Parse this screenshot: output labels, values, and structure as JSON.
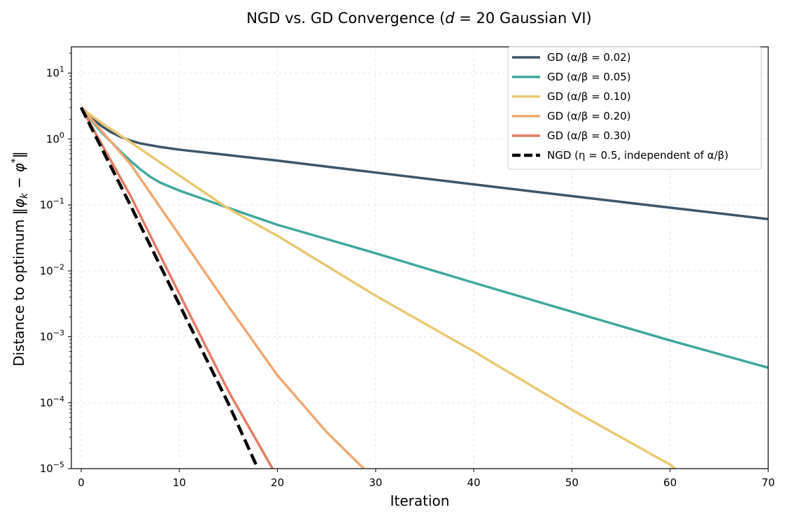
{
  "chart_data": {
    "type": "line",
    "title": "NGD vs. GD Convergence (d = 20 Gaussian VI)",
    "xlabel": "Iteration",
    "ylabel": "Distance to optimum  ‖φ_k − φ*‖",
    "xlim": [
      -1,
      70
    ],
    "ylim": [
      1e-05,
      25
    ],
    "yscale": "log",
    "x_ticks": [
      0,
      10,
      20,
      30,
      40,
      50,
      60,
      70
    ],
    "y_ticks": [
      {
        "value": 1e-05,
        "base": "10",
        "exp": "−5"
      },
      {
        "value": 0.0001,
        "base": "10",
        "exp": "−4"
      },
      {
        "value": 0.001,
        "base": "10",
        "exp": "−3"
      },
      {
        "value": 0.01,
        "base": "10",
        "exp": "−2"
      },
      {
        "value": 0.1,
        "base": "10",
        "exp": "−1"
      },
      {
        "value": 1,
        "base": "10",
        "exp": "0"
      },
      {
        "value": 10,
        "base": "10",
        "exp": "1"
      }
    ],
    "grid": true,
    "legend_position": "top-right",
    "series": [
      {
        "name": "GD (α/β = 0.02)",
        "color": "#3f5566",
        "style": "solid",
        "points": [
          [
            0,
            3.0
          ],
          [
            1,
            2.1
          ],
          [
            2,
            1.6
          ],
          [
            3,
            1.28
          ],
          [
            4,
            1.08
          ],
          [
            5,
            0.95
          ],
          [
            6,
            0.86
          ],
          [
            8,
            0.76
          ],
          [
            10,
            0.69
          ],
          [
            15,
            0.57
          ],
          [
            20,
            0.47
          ],
          [
            30,
            0.31
          ],
          [
            40,
            0.205
          ],
          [
            50,
            0.136
          ],
          [
            60,
            0.091
          ],
          [
            70,
            0.061
          ]
        ]
      },
      {
        "name": "GD (α/β = 0.05)",
        "color": "#3fa89b",
        "style": "solid",
        "points": [
          [
            0,
            3.0
          ],
          [
            1,
            1.95
          ],
          [
            2,
            1.3
          ],
          [
            3,
            0.92
          ],
          [
            4,
            0.65
          ],
          [
            5,
            0.47
          ],
          [
            6,
            0.35
          ],
          [
            7,
            0.27
          ],
          [
            8,
            0.22
          ],
          [
            10,
            0.165
          ],
          [
            12,
            0.13
          ],
          [
            15,
            0.09
          ],
          [
            20,
            0.05
          ],
          [
            30,
            0.0185
          ],
          [
            40,
            0.0066
          ],
          [
            50,
            0.0024
          ],
          [
            60,
            0.00088
          ],
          [
            70,
            0.00034
          ]
        ]
      },
      {
        "name": "GD (α/β = 0.10)",
        "color": "#e8c872",
        "style": "solid",
        "points": [
          [
            0,
            3.0
          ],
          [
            1,
            2.3
          ],
          [
            2,
            1.8
          ],
          [
            5,
            0.9
          ],
          [
            10,
            0.28
          ],
          [
            15,
            0.088
          ],
          [
            20,
            0.034
          ],
          [
            30,
            0.0042
          ],
          [
            40,
            0.0006
          ],
          [
            50,
            7.8e-05
          ],
          [
            60,
            1.15e-05
          ],
          [
            60.5,
            1e-05
          ]
        ]
      },
      {
        "name": "GD (α/β = 0.20)",
        "color": "#f0a872",
        "style": "solid",
        "points": [
          [
            0,
            3.0
          ],
          [
            5,
            0.42
          ],
          [
            10,
            0.035
          ],
          [
            15,
            0.0029
          ],
          [
            20,
            0.00026
          ],
          [
            25,
            3.6e-05
          ],
          [
            28.8,
            1e-05
          ]
        ]
      },
      {
        "name": "GD (α/β = 0.30)",
        "color": "#e47c63",
        "style": "solid",
        "points": [
          [
            0,
            3.0
          ],
          [
            5,
            0.14
          ],
          [
            10,
            0.0045
          ],
          [
            15,
            0.00015
          ],
          [
            19.5,
            1e-05
          ]
        ]
      },
      {
        "name": "NGD (η = 0.5, independent of α/β)",
        "color": "#000000",
        "style": "dashed",
        "points": [
          [
            0,
            3.0
          ],
          [
            5,
            0.1
          ],
          [
            10,
            0.0031
          ],
          [
            15,
            9.7e-05
          ],
          [
            18,
            1e-05
          ]
        ]
      }
    ]
  }
}
